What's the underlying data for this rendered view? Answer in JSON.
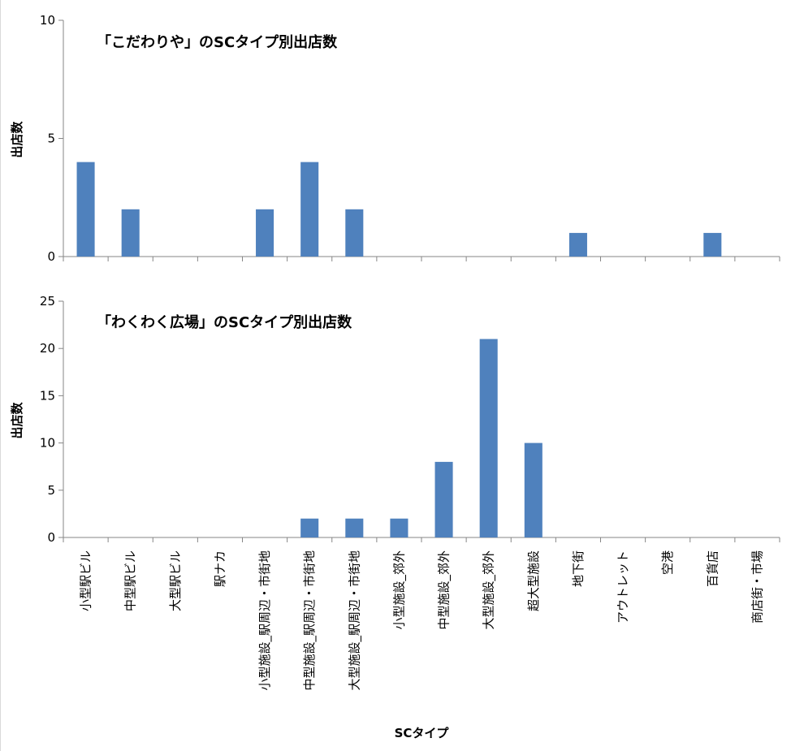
{
  "chart_data": [
    {
      "type": "bar",
      "title": "「こだわりや」のSCタイプ別出店数",
      "ylabel": "出店数",
      "xlabel": "",
      "ylim": [
        0,
        10
      ],
      "yticks": [
        0,
        5,
        10
      ],
      "grid": false,
      "legend": "none",
      "bar_color": "#4f81bd",
      "categories": [
        "小型駅ビル",
        "中型駅ビル",
        "大型駅ビル",
        "駅ナカ",
        "小型施設_駅周辺・市街地",
        "中型施設_駅周辺・市街地",
        "大型施設_駅周辺・市街地",
        "小型施設_郊外",
        "中型施設_郊外",
        "大型施設_郊外",
        "超大型施設",
        "地下街",
        "アウトレット",
        "空港",
        "百貨店",
        "商店街・市場"
      ],
      "values": [
        4,
        2,
        0,
        0,
        2,
        4,
        2,
        0,
        0,
        0,
        0,
        1,
        0,
        0,
        1,
        0
      ]
    },
    {
      "type": "bar",
      "title": "「わくわく広場」のSCタイプ別出店数",
      "ylabel": "出店数",
      "xlabel": "SCタイプ",
      "ylim": [
        0,
        25
      ],
      "yticks": [
        0,
        5,
        10,
        15,
        20,
        25
      ],
      "grid": false,
      "legend": "none",
      "bar_color": "#4f81bd",
      "categories": [
        "小型駅ビル",
        "中型駅ビル",
        "大型駅ビル",
        "駅ナカ",
        "小型施設_駅周辺・市街地",
        "中型施設_駅周辺・市街地",
        "大型施設_駅周辺・市街地",
        "小型施設_郊外",
        "中型施設_郊外",
        "大型施設_郊外",
        "超大型施設",
        "地下街",
        "アウトレット",
        "空港",
        "百貨店",
        "商店街・市場"
      ],
      "values": [
        0,
        0,
        0,
        0,
        0,
        2,
        2,
        2,
        8,
        21,
        10,
        0,
        0,
        0,
        0,
        0
      ]
    }
  ]
}
